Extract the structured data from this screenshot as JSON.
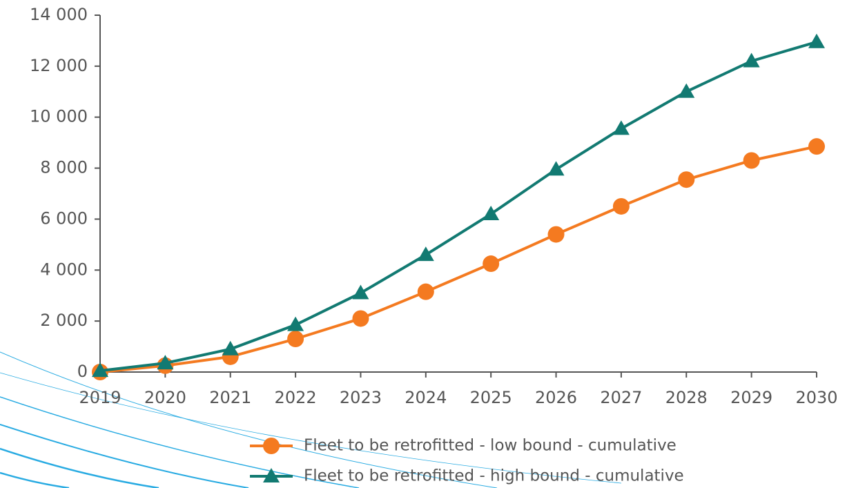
{
  "chart_data": {
    "type": "line",
    "categories": [
      "2019",
      "2020",
      "2021",
      "2022",
      "2023",
      "2024",
      "2025",
      "2026",
      "2027",
      "2028",
      "2029",
      "2030"
    ],
    "series": [
      {
        "name": "Fleet to be retrofitted - low bound - cumulative",
        "color": "#f47a20",
        "marker": "circle",
        "values": [
          0,
          250,
          600,
          1300,
          2100,
          3150,
          4250,
          5400,
          6500,
          7550,
          8300,
          8850
        ]
      },
      {
        "name": "Fleet to be retrofitted - high bound - cumulative",
        "color": "#127a72",
        "marker": "triangle",
        "values": [
          50,
          350,
          900,
          1850,
          3100,
          4600,
          6200,
          7950,
          9550,
          11000,
          12200,
          12950
        ]
      }
    ],
    "ylim": [
      0,
      14000
    ],
    "yticks": [
      0,
      {
        "value": 2000,
        "label": "2 000"
      },
      {
        "value": 4000,
        "label": "4 000"
      },
      {
        "value": 6000,
        "label": "6 000"
      },
      {
        "value": 8000,
        "label": "8 000"
      },
      {
        "value": 10000,
        "label": "10 000"
      },
      {
        "value": 12000,
        "label": "12 000"
      },
      {
        "value": 14000,
        "label": "14 000"
      }
    ],
    "grid": false,
    "legend": "bottom"
  }
}
